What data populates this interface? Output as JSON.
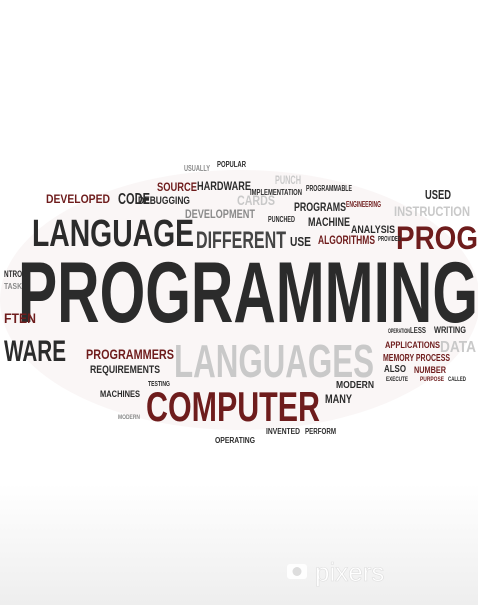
{
  "words": [
    "PROGRAMMING",
    "LANGUAGE",
    "DIFFERENT",
    "PROG",
    "LANGUAGES",
    "COMPUTER",
    "WARE",
    "PROGRAMMERS",
    "DEVELOPED",
    "CODE",
    "SOURCE",
    "HARDWARE",
    "DEBUGGING",
    "DEVELOPMENT",
    "CARDS",
    "PROGRAMS",
    "MACHINE",
    "ALGORITHMS",
    "ANALYSIS",
    "USE",
    "USED",
    "INSTRUCTION",
    "REQUIREMENTS",
    "MACHINES",
    "MANY",
    "MODERN",
    "MEMORY PROCESS",
    "APPLICATIONS",
    "DATA",
    "ALSO",
    "NUMBER",
    "OPERATING",
    "INVENTED",
    "PERFORM",
    "FTEN",
    "POPULAR",
    "IMPLEMENTATION",
    "ENGINEERING",
    "PROGRAMMABLE",
    "PUNCH",
    "USUALLY",
    "PUNCHED",
    "PROVIDED",
    "LESS",
    "WRITING",
    "OPERATION",
    "NTROL",
    "TASK",
    "TESTING",
    "EXECUTE",
    "PURPOSE",
    "CALLED",
    "MODERN"
  ],
  "watermark": "pixers"
}
